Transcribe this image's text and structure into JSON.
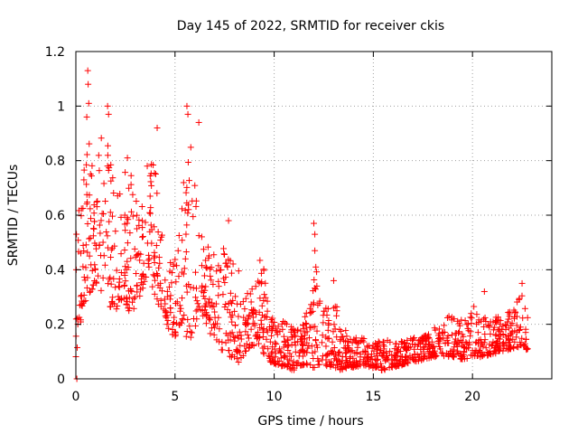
{
  "chart_data": {
    "type": "scatter",
    "title": "Day 145 of 2022, SRMTID for receiver ckis",
    "xlabel": "GPS time / hours",
    "ylabel": "SRMTID / TECUs",
    "xlim": [
      0,
      24
    ],
    "ylim": [
      0,
      1.2
    ],
    "x_ticks": [
      0,
      5,
      10,
      15,
      20
    ],
    "x_tick_labels": [
      "0",
      "5",
      "10",
      "15",
      "20"
    ],
    "y_ticks": [
      0,
      0.2,
      0.4,
      0.6,
      0.8,
      1.0,
      1.2
    ],
    "y_tick_labels": [
      "0",
      "0.2",
      "0.4",
      "0.6",
      "0.8",
      "1",
      "1.2"
    ],
    "grid": true,
    "marker": "+",
    "marker_color": "#ff0000",
    "envelope_hours": [
      0,
      0.3,
      0.6,
      1.0,
      1.3,
      1.7,
      2.0,
      2.4,
      2.8,
      3.2,
      3.6,
      4.0,
      4.3,
      4.7,
      5.0,
      5.3,
      5.6,
      5.9,
      6.2,
      6.6,
      7.0,
      7.4,
      7.8,
      8.2,
      8.6,
      9.0,
      9.4,
      9.8,
      10.2,
      10.6,
      11.0,
      11.5,
      12.0,
      12.5,
      13.0,
      13.5,
      14.0,
      14.5,
      15.0,
      15.5,
      16.0,
      16.5,
      17.0,
      17.5,
      18.0,
      18.5,
      19.0,
      19.5,
      20.0,
      20.5,
      21.0,
      21.5,
      22.0,
      22.5,
      22.8
    ],
    "envelope_low": [
      0.0,
      0.25,
      0.3,
      0.35,
      0.3,
      0.25,
      0.25,
      0.3,
      0.22,
      0.3,
      0.35,
      0.3,
      0.25,
      0.18,
      0.15,
      0.2,
      0.15,
      0.15,
      0.25,
      0.2,
      0.12,
      0.1,
      0.08,
      0.06,
      0.1,
      0.12,
      0.1,
      0.06,
      0.05,
      0.04,
      0.03,
      0.05,
      0.04,
      0.05,
      0.04,
      0.03,
      0.04,
      0.05,
      0.04,
      0.03,
      0.04,
      0.05,
      0.06,
      0.07,
      0.08,
      0.08,
      0.08,
      0.07,
      0.08,
      0.08,
      0.09,
      0.1,
      0.11,
      0.12,
      0.1
    ],
    "envelope_high": [
      0.55,
      0.7,
      0.9,
      0.72,
      0.95,
      0.85,
      0.65,
      0.8,
      0.75,
      0.6,
      0.75,
      0.88,
      0.55,
      0.45,
      0.45,
      0.6,
      0.95,
      0.9,
      0.55,
      0.5,
      0.45,
      0.55,
      0.45,
      0.4,
      0.3,
      0.4,
      0.45,
      0.25,
      0.2,
      0.25,
      0.18,
      0.2,
      0.45,
      0.25,
      0.3,
      0.2,
      0.15,
      0.15,
      0.14,
      0.15,
      0.13,
      0.14,
      0.15,
      0.16,
      0.18,
      0.22,
      0.24,
      0.22,
      0.28,
      0.24,
      0.22,
      0.24,
      0.26,
      0.33,
      0.22
    ],
    "spikes": [
      {
        "x": 0.6,
        "y": 1.13
      },
      {
        "x": 0.62,
        "y": 1.08
      },
      {
        "x": 0.65,
        "y": 1.01
      },
      {
        "x": 0.55,
        "y": 0.96
      },
      {
        "x": 1.6,
        "y": 1.0
      },
      {
        "x": 1.65,
        "y": 0.97
      },
      {
        "x": 5.6,
        "y": 1.0
      },
      {
        "x": 5.65,
        "y": 0.97
      },
      {
        "x": 6.2,
        "y": 0.94
      },
      {
        "x": 4.1,
        "y": 0.92
      },
      {
        "x": 2.6,
        "y": 0.81
      },
      {
        "x": 3.6,
        "y": 0.78
      },
      {
        "x": 12.0,
        "y": 0.57
      },
      {
        "x": 12.05,
        "y": 0.53
      },
      {
        "x": 12.05,
        "y": 0.47
      },
      {
        "x": 12.1,
        "y": 0.41
      },
      {
        "x": 7.7,
        "y": 0.58
      },
      {
        "x": 13.0,
        "y": 0.36
      },
      {
        "x": 20.6,
        "y": 0.32
      },
      {
        "x": 22.5,
        "y": 0.35
      },
      {
        "x": 0.05,
        "y": 0.0
      },
      {
        "x": 0.02,
        "y": 0.4
      }
    ]
  }
}
